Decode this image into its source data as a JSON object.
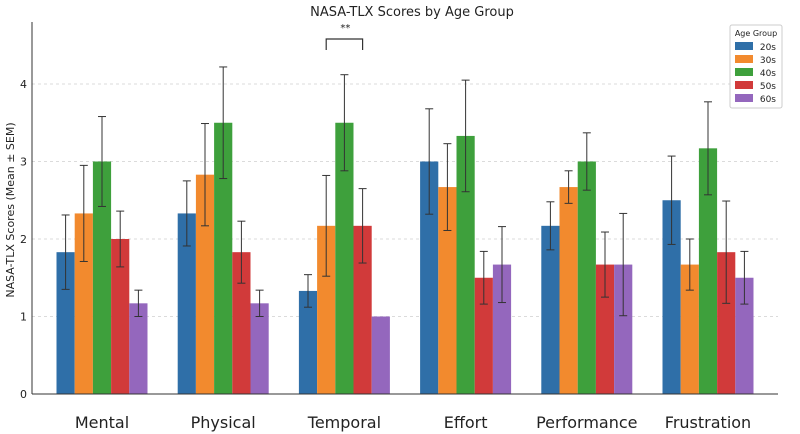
{
  "chart_data": {
    "type": "bar",
    "title": "NASA-TLX Scores by Age Group",
    "xlabel": "",
    "ylabel": "NASA-TLX Scores (Mean ± SEM)",
    "ylim": [
      0,
      4.8
    ],
    "yticks": [
      "0",
      "1",
      "2",
      "3",
      "4"
    ],
    "grid": true,
    "legend_title": "Age Group",
    "legend_position": "top-right",
    "categories": [
      "Mental",
      "Physical",
      "Temporal",
      "Effort",
      "Performance",
      "Frustration"
    ],
    "series": [
      {
        "name": "20s",
        "color": "#2f6fa8",
        "values": [
          1.83,
          2.33,
          1.33,
          3.0,
          2.17,
          2.5
        ],
        "errors": [
          0.48,
          0.42,
          0.21,
          0.68,
          0.31,
          0.57
        ]
      },
      {
        "name": "30s",
        "color": "#f28a2e",
        "values": [
          2.33,
          2.83,
          2.17,
          2.67,
          2.67,
          1.67
        ],
        "errors": [
          0.62,
          0.66,
          0.65,
          0.56,
          0.21,
          0.33
        ]
      },
      {
        "name": "40s",
        "color": "#3ea03c",
        "values": [
          3.0,
          3.5,
          3.5,
          3.33,
          3.0,
          3.17
        ],
        "errors": [
          0.58,
          0.72,
          0.62,
          0.72,
          0.37,
          0.6
        ]
      },
      {
        "name": "50s",
        "color": "#d13a3a",
        "values": [
          2.0,
          1.83,
          2.17,
          1.5,
          1.67,
          1.83
        ],
        "errors": [
          0.36,
          0.4,
          0.48,
          0.34,
          0.42,
          0.66
        ]
      },
      {
        "name": "60s",
        "color": "#9467bd",
        "values": [
          1.17,
          1.17,
          1.0,
          1.67,
          1.67,
          1.5
        ],
        "errors": [
          0.17,
          0.17,
          0.0,
          0.49,
          0.66,
          0.34
        ]
      }
    ],
    "annotations": [
      {
        "text": "**",
        "category": "Temporal",
        "from_series": "30s",
        "to_series": "50s"
      }
    ]
  }
}
